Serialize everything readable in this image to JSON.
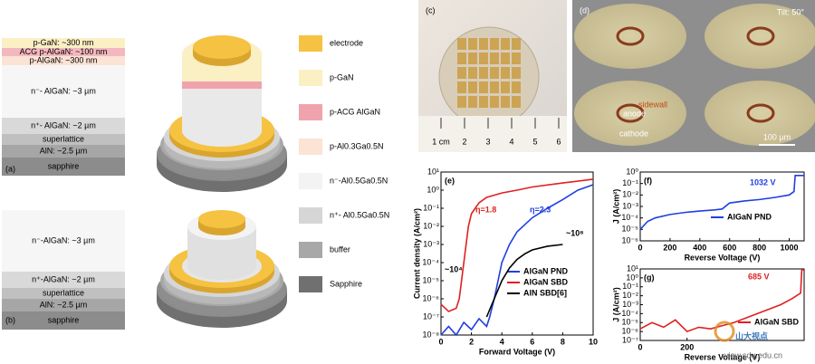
{
  "figure": {
    "panel_a": {
      "label": "(a)",
      "layers": [
        {
          "text": "p-GaN: ~300 nm",
          "color": "#fbefc4"
        },
        {
          "text": "ACG p-AlGaN: ~100 nm",
          "color": "#f3b8bf"
        },
        {
          "text": "p-AlGaN: ~300 nm",
          "color": "#fbe3d6"
        },
        {
          "text": "n⁻- AlGaN: ~3 µm",
          "color": "#f6f6f6"
        },
        {
          "text": "n⁺- AlGaN: ~2 µm",
          "color": "#d9d9d9"
        },
        {
          "text": "superlattice",
          "color": "#c0c0c0"
        },
        {
          "text": "AlN: ~2.5 µm",
          "color": "#a6a6a6"
        },
        {
          "text": "sapphire",
          "color": "#8c8c8c"
        }
      ]
    },
    "panel_b": {
      "label": "(b)",
      "layers": [
        {
          "text": "n⁻-AlGaN: ~3 µm",
          "color": "#f6f6f6"
        },
        {
          "text": "n⁺-AlGaN: ~2 µm",
          "color": "#d9d9d9"
        },
        {
          "text": "superlattice",
          "color": "#c0c0c0"
        },
        {
          "text": "AlN: ~2.5 µm",
          "color": "#a6a6a6"
        },
        {
          "text": "sapphire",
          "color": "#8c8c8c"
        }
      ]
    },
    "legend": [
      {
        "text": "electrode",
        "color": "#f5c242"
      },
      {
        "text": "p-GaN",
        "color": "#fbefc4"
      },
      {
        "text": "p-ACG AlGaN",
        "color": "#f0a3ad"
      },
      {
        "text": "p-Al0.3Ga0.5N",
        "color": "#fbe3d6"
      },
      {
        "text": "n⁻-Al0.5Ga0.5N",
        "color": "#f3f3f3"
      },
      {
        "text": "n⁺- Al0.5Ga0.5N",
        "color": "#d6d6d6"
      },
      {
        "text": "buffer",
        "color": "#a8a8a8"
      },
      {
        "text": "Sapphire",
        "color": "#707070"
      }
    ],
    "panel_c": {
      "label": "(c)",
      "ruler": [
        "1 cm",
        "2",
        "3",
        "4",
        "5",
        "6"
      ]
    },
    "panel_d": {
      "label": "(d)",
      "tilt": "Tilt: 50°",
      "sidewall": "sidewall",
      "anode": "anode",
      "cathode": "cathode",
      "scale": "100 µm"
    },
    "watermark": [
      "山大视点",
      "view.sdu.edu.cn"
    ]
  },
  "chart_data": [
    {
      "type": "line",
      "label": "(e)",
      "xlabel": "Forward Voltage (V)",
      "ylabel": "Current density (A/cm²)",
      "log_y": true,
      "xlim": [
        0,
        10
      ],
      "ylim": [
        1e-08,
        10
      ],
      "xticks": [
        0,
        2,
        4,
        6,
        8,
        10
      ],
      "yticks": [
        {
          "value": 10,
          "label": "10¹"
        },
        {
          "value": 1,
          "label": "10⁰"
        },
        {
          "value": 0.1,
          "label": "10⁻¹"
        },
        {
          "value": 0.01,
          "label": "10⁻²"
        },
        {
          "value": 0.001,
          "label": "10⁻³"
        },
        {
          "value": 0.0001,
          "label": "10⁻⁴"
        },
        {
          "value": 1e-05,
          "label": "10⁻⁵"
        },
        {
          "value": 1e-06,
          "label": "10⁻⁶"
        },
        {
          "value": 1e-07,
          "label": "10⁻⁷"
        },
        {
          "value": 1e-08,
          "label": "10⁻⁸"
        }
      ],
      "series": [
        {
          "name": "AlGaN PND",
          "color": "#1f3fe0",
          "x": [
            0,
            0.5,
            1,
            1.5,
            2,
            2.5,
            3,
            3.2,
            3.5,
            4,
            4.5,
            5,
            6,
            7,
            8,
            9,
            10
          ],
          "values": [
            1e-08,
            3e-08,
            1e-08,
            5e-08,
            2e-08,
            8e-08,
            3e-08,
            1e-07,
            1e-06,
            0.0001,
            0.001,
            0.005,
            0.03,
            0.1,
            0.3,
            1,
            2
          ]
        },
        {
          "name": "AlGaN SBD",
          "color": "#e02020",
          "x": [
            0,
            0.5,
            1,
            1.2,
            1.5,
            1.8,
            2,
            2.5,
            3,
            4,
            5,
            6,
            8,
            10
          ],
          "values": [
            5e-07,
            2e-07,
            3e-07,
            1e-06,
            0.0001,
            0.01,
            0.05,
            0.2,
            0.4,
            0.7,
            1,
            1.5,
            2.5,
            4
          ]
        },
        {
          "name": "AlN SBD[6]",
          "color": "#000000",
          "x": [
            3,
            3.5,
            4,
            4.5,
            5,
            5.5,
            6,
            7,
            8
          ],
          "values": [
            1e-07,
            1e-06,
            1e-05,
            5e-05,
            0.00015,
            0.0003,
            0.0005,
            0.0008,
            0.001
          ]
        }
      ],
      "annotations": [
        "η=1.8",
        "η=2.3",
        "~10⁸",
        "~10⁴"
      ]
    },
    {
      "type": "line",
      "label": "(f)",
      "xlabel": "Reverse Voltage (V)",
      "ylabel": "J (A/cm²)",
      "log_y": true,
      "xlim": [
        0,
        1100
      ],
      "ylim": [
        1e-06,
        1
      ],
      "xticks": [
        0,
        200,
        400,
        600,
        800,
        1000
      ],
      "yticks": [
        {
          "value": 1,
          "label": "10⁰"
        },
        {
          "value": 0.1,
          "label": "10⁻¹"
        },
        {
          "value": 0.01,
          "label": "10⁻²"
        },
        {
          "value": 0.001,
          "label": "10⁻³"
        },
        {
          "value": 0.0001,
          "label": "10⁻⁴"
        },
        {
          "value": 1e-05,
          "label": "10⁻⁵"
        },
        {
          "value": 1e-06,
          "label": "10⁻⁶"
        }
      ],
      "series": [
        {
          "name": "AlGaN PND",
          "color": "#1f3fe0",
          "x": [
            0,
            50,
            100,
            200,
            300,
            400,
            500,
            550,
            600,
            700,
            800,
            900,
            1000,
            1032,
            1040,
            1100
          ],
          "values": [
            1e-05,
            5e-05,
            0.0001,
            0.0002,
            0.0003,
            0.0004,
            0.0005,
            0.0006,
            0.002,
            0.003,
            0.004,
            0.006,
            0.01,
            0.02,
            0.5,
            0.5
          ]
        }
      ],
      "annotations": [
        "1032 V"
      ]
    },
    {
      "type": "line",
      "label": "(g)",
      "xlabel": "Reverse Voltage (V)",
      "ylabel": "J (A/cm²)",
      "log_y": true,
      "xlim": [
        0,
        700
      ],
      "ylim": [
        1e-07,
        10
      ],
      "xticks": [
        0,
        200
      ],
      "yticks": [
        {
          "value": 10,
          "label": "10¹"
        },
        {
          "value": 1,
          "label": "10⁰"
        },
        {
          "value": 0.1,
          "label": "10⁻¹"
        },
        {
          "value": 0.01,
          "label": "10⁻²"
        },
        {
          "value": 0.001,
          "label": "10⁻³"
        },
        {
          "value": 0.0001,
          "label": "10⁻⁴"
        },
        {
          "value": 1e-05,
          "label": "10⁻⁵"
        },
        {
          "value": 1e-06,
          "label": "10⁻⁶"
        },
        {
          "value": 1e-07,
          "label": "10⁻⁷"
        }
      ],
      "series": [
        {
          "name": "AlGaN SBD",
          "color": "#e02020",
          "x": [
            0,
            50,
            100,
            150,
            200,
            250,
            300,
            400,
            500,
            600,
            650,
            685,
            690,
            700
          ],
          "values": [
            2e-06,
            1e-05,
            3e-06,
            2e-05,
            1e-06,
            3e-06,
            2e-06,
            1e-05,
            0.0001,
            0.001,
            0.005,
            0.02,
            8,
            8
          ]
        }
      ],
      "annotations": [
        "685 V"
      ]
    }
  ]
}
